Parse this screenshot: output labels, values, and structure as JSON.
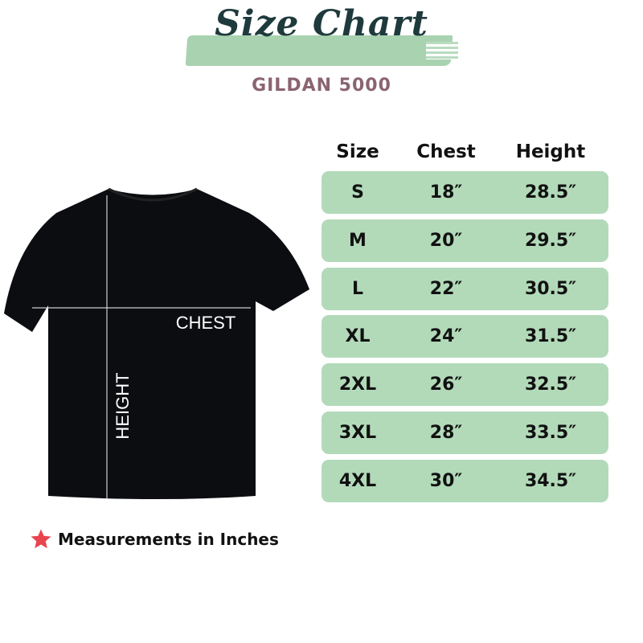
{
  "header": {
    "title": "Size Chart",
    "subtitle": "GILDAN 5000"
  },
  "colors": {
    "row_bg": "#b2dab9",
    "brush": "#a9d2b1",
    "title": "#1f3a3c",
    "subtitle": "#8a6470",
    "star": "#e8454f",
    "shirt": "#0b0d10"
  },
  "table": {
    "columns": [
      "Size",
      "Chest",
      "Height"
    ],
    "rows": [
      [
        "S",
        "18″",
        "28.5″"
      ],
      [
        "M",
        "20″",
        "29.5″"
      ],
      [
        "L",
        "22″",
        "30.5″"
      ],
      [
        "XL",
        "24″",
        "31.5″"
      ],
      [
        "2XL",
        "26″",
        "32.5″"
      ],
      [
        "3XL",
        "28″",
        "33.5″"
      ],
      [
        "4XL",
        "30″",
        "34.5″"
      ]
    ]
  },
  "shirt": {
    "chest_label": "CHEST",
    "height_label": "HEIGHT"
  },
  "note": {
    "icon": "star-icon",
    "text": "Measurements in Inches"
  }
}
